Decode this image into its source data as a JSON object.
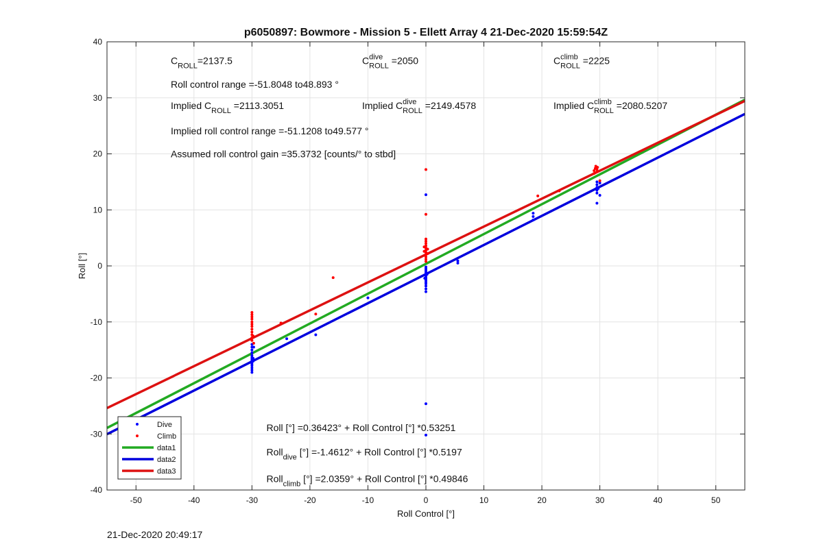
{
  "timestamp_footer": "21-Dec-2020 20:49:17",
  "chart_data": {
    "type": "scatter",
    "title": "p6050897: Bowmore - Mission 5 - Ellett Array 4 21-Dec-2020 15:59:54Z",
    "xlabel": "Roll Control [°]",
    "ylabel": "Roll [°]",
    "xlim": [
      -55,
      55
    ],
    "ylim": [
      -40,
      40
    ],
    "xticks": [
      -50,
      -40,
      -30,
      -20,
      -10,
      0,
      10,
      20,
      30,
      40,
      50
    ],
    "yticks": [
      -40,
      -30,
      -20,
      -10,
      0,
      10,
      20,
      30,
      40
    ],
    "grid": true,
    "legend_position": "bottom-left",
    "colors": {
      "dive": "#0000ff",
      "climb": "#ff0000",
      "data1": "#22aa22",
      "data2": "#0000dd",
      "data3": "#dd1111"
    },
    "legend": [
      {
        "name": "Dive",
        "kind": "marker",
        "color": "#0000ff"
      },
      {
        "name": "Climb",
        "kind": "marker",
        "color": "#ff0000"
      },
      {
        "name": "data1",
        "kind": "line",
        "color": "#22aa22"
      },
      {
        "name": "data2",
        "kind": "line",
        "color": "#0000dd"
      },
      {
        "name": "data3",
        "kind": "line",
        "color": "#dd1111"
      }
    ],
    "lines": [
      {
        "name": "data1",
        "intercept": 0.36423,
        "slope": 0.53251,
        "color": "#22aa22"
      },
      {
        "name": "data2",
        "intercept": -1.4612,
        "slope": 0.5197,
        "color": "#0000dd"
      },
      {
        "name": "data3",
        "intercept": 2.0359,
        "slope": 0.49846,
        "color": "#dd1111"
      }
    ],
    "series": [
      {
        "name": "Dive",
        "color": "#0000ff",
        "points": [
          [
            -30,
            -14
          ],
          [
            -30,
            -14.5
          ],
          [
            -30,
            -15
          ],
          [
            -30,
            -15.5
          ],
          [
            -30,
            -16
          ],
          [
            -30,
            -16.3
          ],
          [
            -30,
            -16.6
          ],
          [
            -30,
            -16.9
          ],
          [
            -30,
            -17.2
          ],
          [
            -30,
            -17.5
          ],
          [
            -30,
            -17.8
          ],
          [
            -30,
            -18.2
          ],
          [
            -30,
            -18.6
          ],
          [
            -30,
            -19
          ],
          [
            -29.8,
            -16.5
          ],
          [
            -29.8,
            -17
          ],
          [
            -29.7,
            -14.5
          ],
          [
            -24,
            -13
          ],
          [
            -19,
            -12.3
          ],
          [
            -10,
            -5.7
          ],
          [
            0,
            12.7
          ],
          [
            0,
            -0.2
          ],
          [
            0,
            -0.5
          ],
          [
            0,
            -0.8
          ],
          [
            0,
            -1.1
          ],
          [
            0,
            -1.4
          ],
          [
            0,
            -1.7
          ],
          [
            0,
            -2.0
          ],
          [
            0,
            -2.3
          ],
          [
            0,
            -2.6
          ],
          [
            0,
            -2.9
          ],
          [
            0,
            -3.2
          ],
          [
            0,
            -3.6
          ],
          [
            0,
            -4.1
          ],
          [
            0,
            -4.6
          ],
          [
            0,
            -24.6
          ],
          [
            0,
            -30.2
          ],
          [
            0.2,
            -1.5
          ],
          [
            -0.2,
            -2.2
          ],
          [
            5.5,
            0.5
          ],
          [
            5.5,
            0.9
          ],
          [
            18.5,
            8.2
          ],
          [
            18.5,
            8.8
          ],
          [
            18.5,
            9.4
          ],
          [
            29.5,
            13.5
          ],
          [
            29.5,
            14
          ],
          [
            29.5,
            14.5
          ],
          [
            29.5,
            15
          ],
          [
            29.5,
            13
          ],
          [
            29.5,
            11.2
          ],
          [
            30,
            12.6
          ],
          [
            30,
            14.8
          ],
          [
            29.7,
            13.8
          ]
        ]
      },
      {
        "name": "Climb",
        "color": "#ff0000",
        "points": [
          [
            -30,
            -8.3
          ],
          [
            -30,
            -8.7
          ],
          [
            -30,
            -9.1
          ],
          [
            -30,
            -9.5
          ],
          [
            -30,
            -10
          ],
          [
            -30,
            -10.4
          ],
          [
            -30,
            -10.8
          ],
          [
            -30,
            -11.3
          ],
          [
            -30,
            -11.8
          ],
          [
            -30,
            -12.3
          ],
          [
            -30,
            -12.8
          ],
          [
            -30,
            -13.3
          ],
          [
            -29.8,
            -12.5
          ],
          [
            -29.7,
            -13.8
          ],
          [
            -25,
            -10.2
          ],
          [
            -19,
            -8.6
          ],
          [
            -16,
            -2.1
          ],
          [
            0,
            17.2
          ],
          [
            0,
            9.2
          ],
          [
            0,
            4.8
          ],
          [
            0,
            4.4
          ],
          [
            0,
            4.0
          ],
          [
            0,
            3.6
          ],
          [
            0,
            3.2
          ],
          [
            0,
            2.8
          ],
          [
            0,
            2.4
          ],
          [
            0,
            2.0
          ],
          [
            0,
            1.6
          ],
          [
            0,
            1.2
          ],
          [
            0,
            0.8
          ],
          [
            -0.3,
            3.4
          ],
          [
            -0.3,
            2.6
          ],
          [
            0.3,
            3.0
          ],
          [
            0.3,
            2.2
          ],
          [
            19.3,
            12.5
          ],
          [
            23,
            13.4
          ],
          [
            29,
            16.5
          ],
          [
            29,
            17
          ],
          [
            29.2,
            17.4
          ],
          [
            29.3,
            17.8
          ],
          [
            29.5,
            17.2
          ],
          [
            29.5,
            16.8
          ],
          [
            29.6,
            17.6
          ],
          [
            30,
            15.2
          ]
        ]
      }
    ],
    "annotations": [
      {
        "id": "c_roll",
        "base": "C",
        "sub": "ROLL",
        "sup": "",
        "text": "=2137.5",
        "x": -44,
        "y": 36
      },
      {
        "id": "c_roll_dive",
        "base": "C",
        "sub": "ROLL",
        "sup": "dive",
        "text": " =2050",
        "x": -11,
        "y": 36
      },
      {
        "id": "c_roll_climb",
        "base": "C",
        "sub": "ROLL",
        "sup": "climb",
        "text": " =2225",
        "x": 22,
        "y": 36
      },
      {
        "id": "roll_range",
        "base": "Roll control range =-51.8048 to48.893 °",
        "sub": "",
        "sup": "",
        "text": "",
        "x": -44,
        "y": 31.8
      },
      {
        "id": "implied_c_roll",
        "base": "Implied C",
        "sub": "ROLL",
        "sup": "",
        "text": " =2113.3051",
        "x": -44,
        "y": 28
      },
      {
        "id": "implied_c_roll_dive",
        "base": "Implied C",
        "sub": "ROLL",
        "sup": "dive",
        "text": " =2149.4578",
        "x": -11,
        "y": 28
      },
      {
        "id": "implied_c_roll_climb",
        "base": "Implied C",
        "sub": "ROLL",
        "sup": "climb",
        "text": " =2080.5207",
        "x": 22,
        "y": 28
      },
      {
        "id": "implied_range",
        "base": "Implied roll control range =-51.1208 to49.577 °",
        "sub": "",
        "sup": "",
        "text": "",
        "x": -44,
        "y": 23.5
      },
      {
        "id": "assumed_gain",
        "base": "Assumed roll control gain =35.3732 [counts/° to stbd]",
        "sub": "",
        "sup": "",
        "text": "",
        "x": -44,
        "y": 19.4
      },
      {
        "id": "fit_all",
        "base": "Roll [°] =0.36423° + Roll Control [°] *0.53251",
        "sub": "",
        "sup": "",
        "text": "",
        "x": -27.5,
        "y": -29.5
      },
      {
        "id": "fit_dive",
        "base": "Roll",
        "sub": "dive",
        "sup": "",
        "text": " [°] =-1.4612° + Roll Control [°] *0.5197",
        "x": -27.5,
        "y": -33.8
      },
      {
        "id": "fit_climb",
        "base": "Roll",
        "sub": "climb",
        "sup": "",
        "text": " [°] =2.0359° + Roll Control [°] *0.49846",
        "x": -27.5,
        "y": -38.6
      }
    ]
  }
}
